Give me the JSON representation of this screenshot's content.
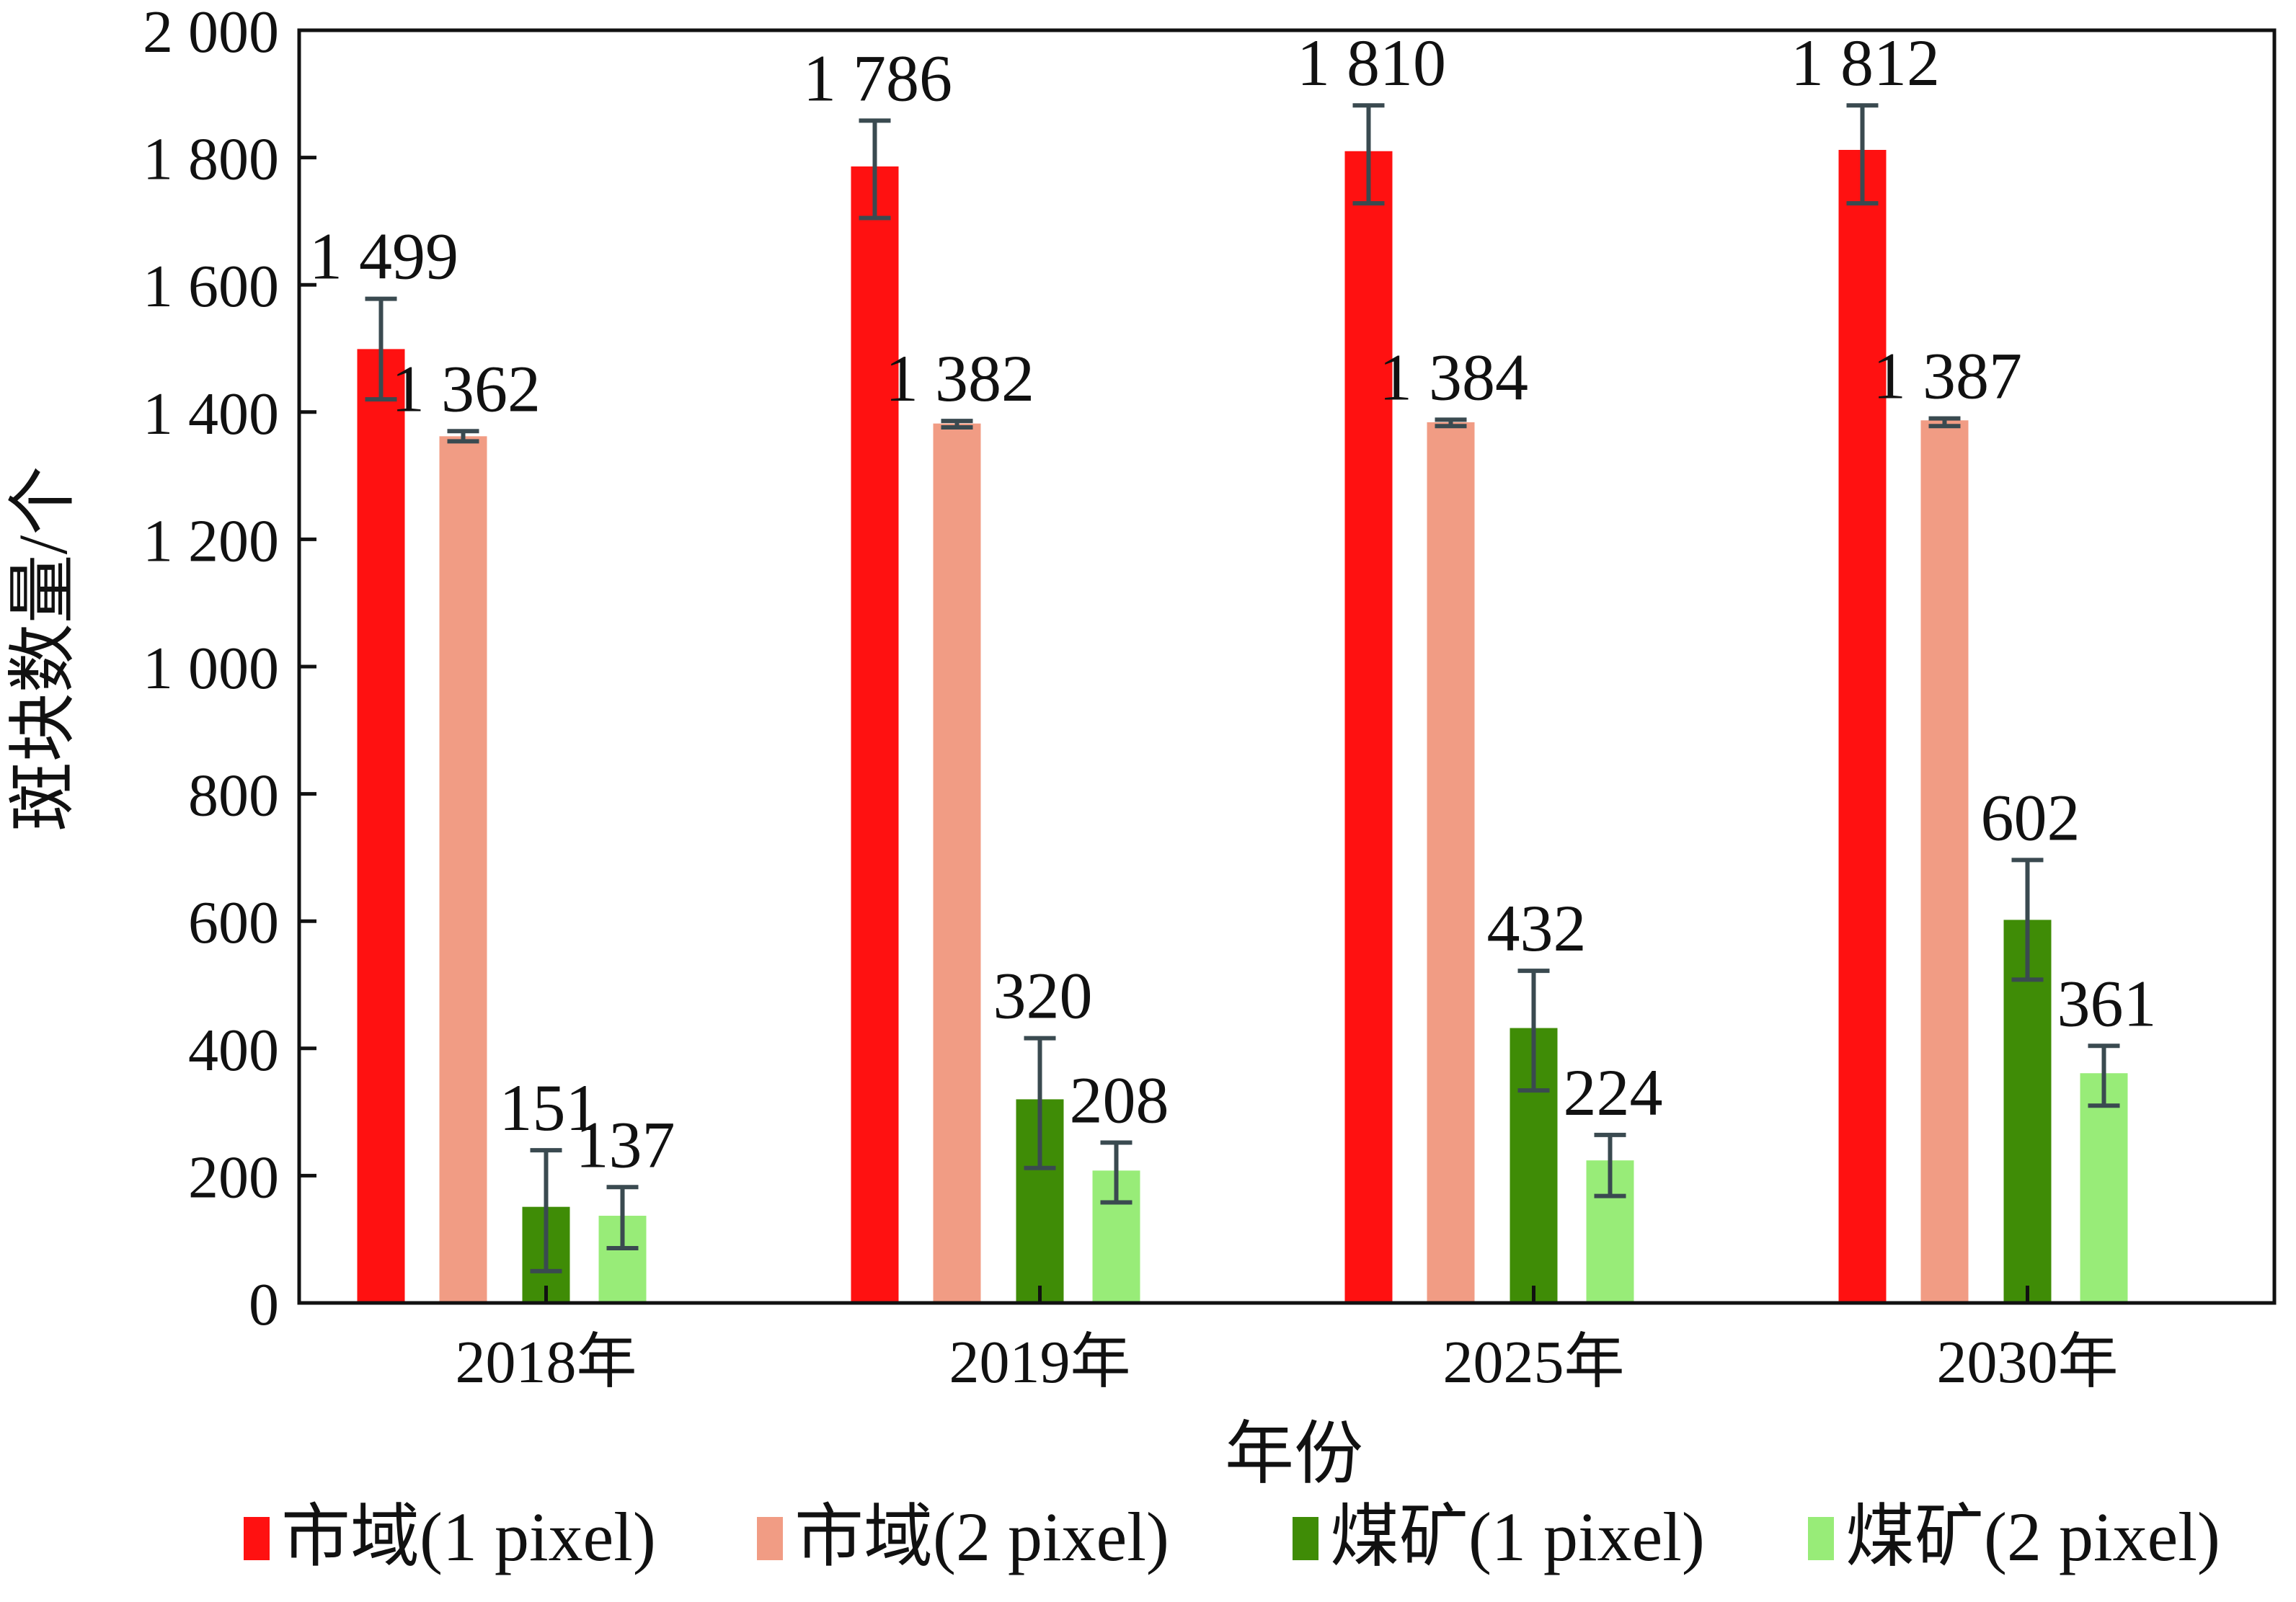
{
  "chart_data": {
    "type": "bar",
    "title": "",
    "xlabel": "年份",
    "ylabel": "斑块数量/个",
    "ylim": [
      0,
      2000
    ],
    "yticks": [
      0,
      200,
      400,
      600,
      800,
      1000,
      1200,
      1400,
      1600,
      1800,
      2000
    ],
    "ytick_labels": [
      "0",
      "200",
      "400",
      "600",
      "800",
      "1 000",
      "1 200",
      "1 400",
      "1 600",
      "1 800",
      "2 000"
    ],
    "categories": [
      "2018年",
      "2019年",
      "2025年",
      "2030年"
    ],
    "grid": false,
    "legend_position": "bottom",
    "series": [
      {
        "name": "市域(1 pixel)",
        "color": "#ff1111",
        "values": [
          1499,
          1786,
          1810,
          1812
        ],
        "labels": [
          "1 499",
          "1 786",
          "1 810",
          "1 812"
        ],
        "error_low": [
          1420,
          1705,
          1728,
          1728
        ],
        "error_high": [
          1578,
          1858,
          1882,
          1882
        ]
      },
      {
        "name": "市域(2 pixel)",
        "color": "#f19c84",
        "values": [
          1362,
          1382,
          1384,
          1387
        ],
        "labels": [
          "1 362",
          "1 382",
          "1 384",
          "1 387"
        ],
        "error_low": [
          1354,
          1376,
          1378,
          1378
        ],
        "error_high": [
          1370,
          1386,
          1388,
          1390
        ]
      },
      {
        "name": "煤矿(1 pixel)",
        "color": "#3f8c06",
        "values": [
          151,
          320,
          432,
          602
        ],
        "labels": [
          "151",
          "320",
          "432",
          "602"
        ],
        "error_low": [
          50,
          212,
          334,
          508
        ],
        "error_high": [
          240,
          416,
          522,
          696
        ]
      },
      {
        "name": "煤矿(2 pixel)",
        "color": "#98ec78",
        "values": [
          137,
          208,
          224,
          361
        ],
        "labels": [
          "137",
          "208",
          "224",
          "361"
        ],
        "error_low": [
          86,
          158,
          168,
          310
        ],
        "error_high": [
          182,
          252,
          264,
          404
        ]
      }
    ],
    "error_bar_color": "#3a4a50"
  }
}
